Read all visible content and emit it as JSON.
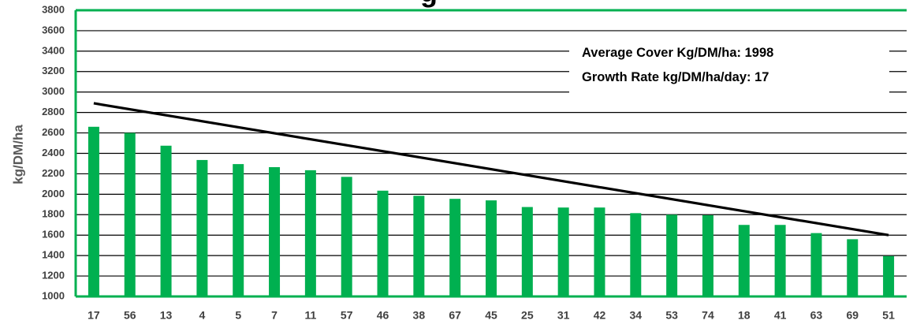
{
  "colors": {
    "bar": "#00b050",
    "trendline": "#000000",
    "grid": "#000000",
    "frame": "#00b050",
    "tick_text": "#404040"
  },
  "chart_data": {
    "type": "bar",
    "title_fragment": "g",
    "ylabel": "kg/DM/ha",
    "xlabel": "",
    "ylim": [
      1000,
      3800
    ],
    "yticks": [
      1000,
      1200,
      1400,
      1600,
      1800,
      2000,
      2200,
      2400,
      2600,
      2800,
      3000,
      3200,
      3400,
      3600,
      3800
    ],
    "grid": true,
    "categories": [
      "17",
      "56",
      "13",
      "4",
      "5",
      "7",
      "11",
      "57",
      "46",
      "38",
      "67",
      "45",
      "25",
      "31",
      "42",
      "34",
      "53",
      "74",
      "18",
      "41",
      "63",
      "69",
      "51"
    ],
    "values": [
      2660,
      2600,
      2475,
      2335,
      2295,
      2265,
      2235,
      2170,
      2035,
      1985,
      1955,
      1940,
      1875,
      1870,
      1870,
      1815,
      1800,
      1795,
      1700,
      1700,
      1620,
      1560,
      1395
    ],
    "trendline": {
      "start": 2890,
      "end": 1600
    },
    "annotations": [
      "Average Cover  Kg/DM/ha: 1998",
      "Growth Rate kg/DM/ha/day: 17"
    ]
  }
}
